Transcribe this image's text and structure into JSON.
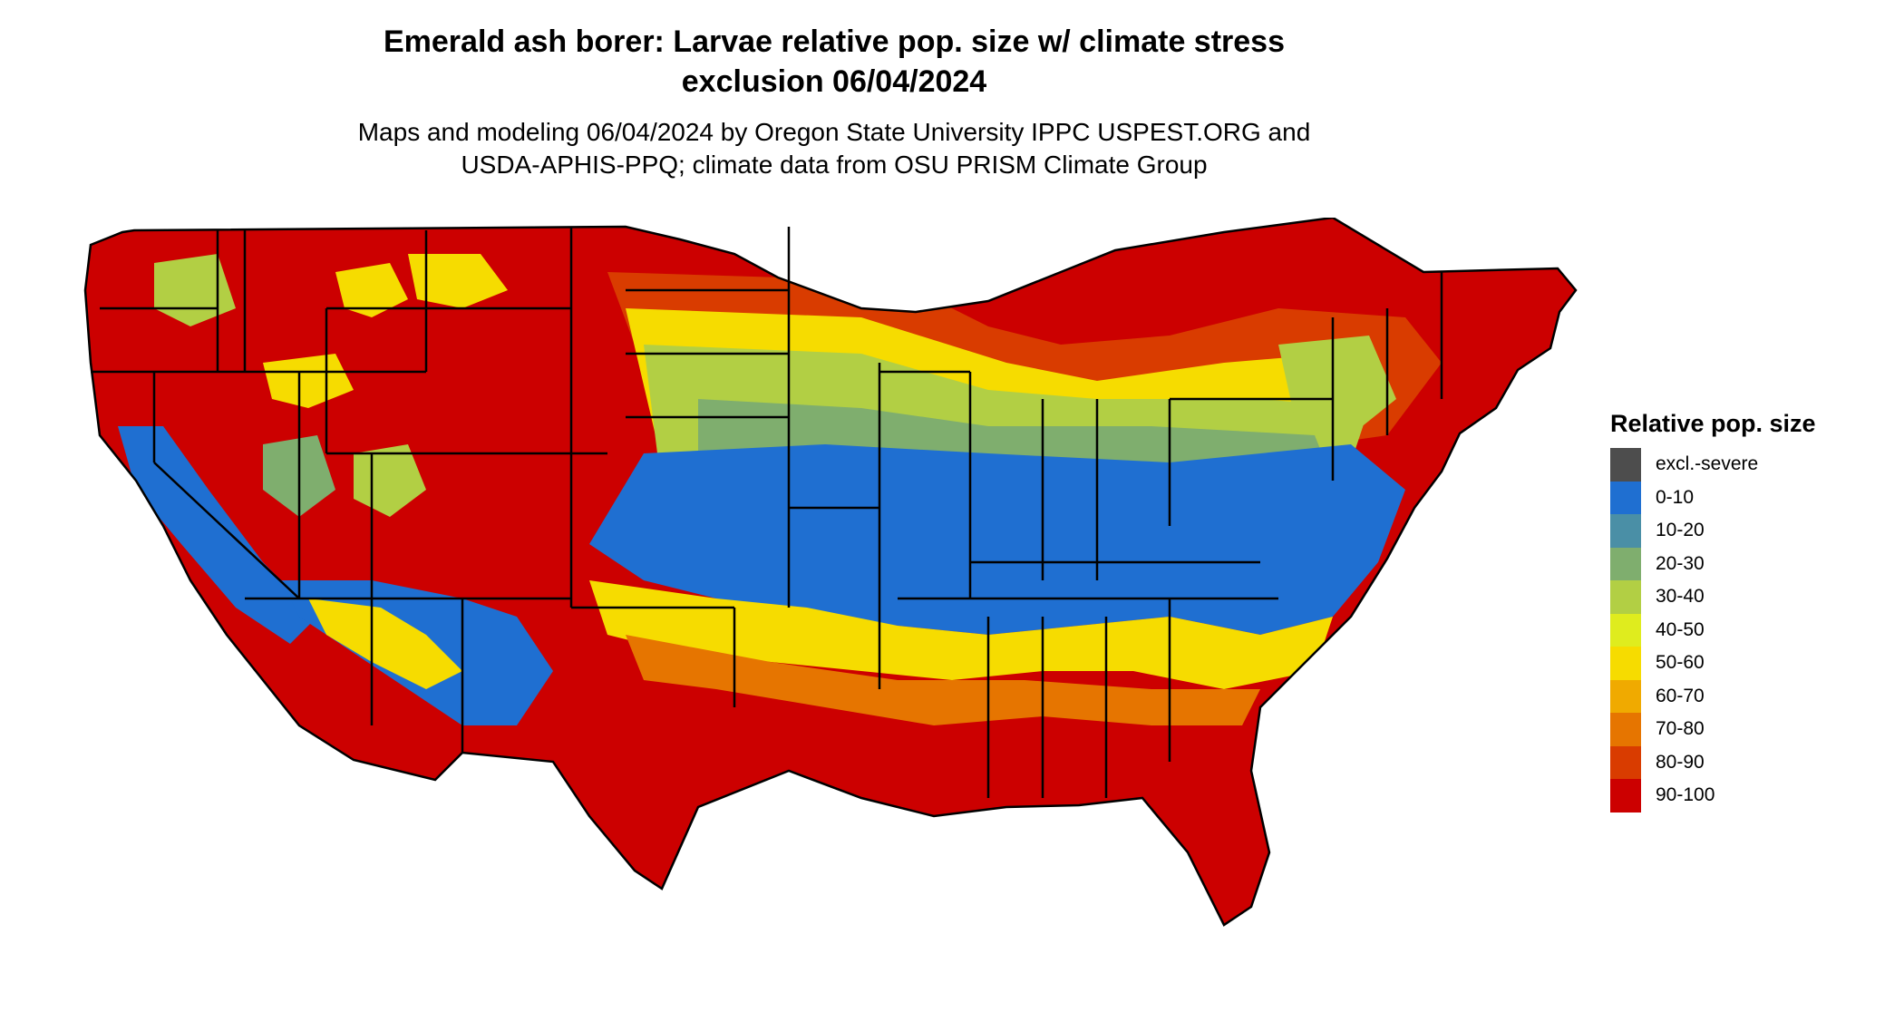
{
  "title_line1": "Emerald ash borer: Larvae relative pop. size w/ climate stress",
  "title_line2": "exclusion 06/04/2024",
  "subtitle_line1": "Maps and modeling 06/04/2024 by Oregon State University IPPC USPEST.ORG and",
  "subtitle_line2": "USDA-APHIS-PPQ; climate data from OSU PRISM Climate Group",
  "legend": {
    "title": "Relative pop. size",
    "items": [
      {
        "label": "excl.-severe",
        "color": "#4d4d4d"
      },
      {
        "label": "0-10",
        "color": "#1f6fd1"
      },
      {
        "label": "10-20",
        "color": "#4a8fa6"
      },
      {
        "label": "20-30",
        "color": "#7fae6e"
      },
      {
        "label": "30-40",
        "color": "#b2cf44"
      },
      {
        "label": "40-50",
        "color": "#dfec1e"
      },
      {
        "label": "50-60",
        "color": "#f6dc00"
      },
      {
        "label": "60-70",
        "color": "#f0aa00"
      },
      {
        "label": "70-80",
        "color": "#e67500"
      },
      {
        "label": "80-90",
        "color": "#d93c00"
      },
      {
        "label": "90-100",
        "color": "#cc0000"
      }
    ]
  },
  "map": {
    "description_colors": {
      "border": "#000000",
      "background": "#ffffff"
    }
  }
}
